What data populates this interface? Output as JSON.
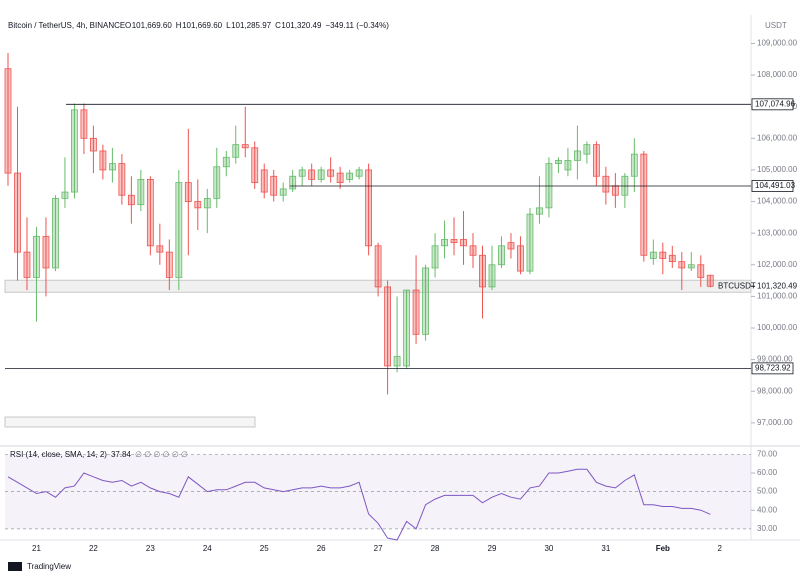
{
  "header": {
    "symbol": "Bitcoin / TetherUS, 4h, BINANCE",
    "ohlc": [
      {
        "key": "O",
        "value": "101,669.60"
      },
      {
        "key": "H",
        "value": "101,669.60"
      },
      {
        "key": "L",
        "value": "101,285.97"
      },
      {
        "key": "C",
        "value": "101,320.49"
      }
    ],
    "change": "−349.11 (−0.34%)",
    "currency": "USDT"
  },
  "time_axis": [
    "21",
    "22",
    "23",
    "24",
    "25",
    "26",
    "27",
    "28",
    "29",
    "30",
    "31",
    "Feb",
    "2"
  ],
  "footer": "TradingView",
  "chart_data": [
    {
      "type": "candlestick",
      "up_color": "#66bb6a",
      "down_color": "#ef5350",
      "open": [
        108.2,
        104.9,
        102.4,
        101.6,
        102.9,
        101.9,
        104.1,
        104.3,
        106.9,
        106.0,
        105.6,
        105.0,
        105.2,
        104.2,
        103.9,
        104.7,
        102.6,
        102.4,
        101.6,
        104.6,
        104.0,
        103.8,
        104.1,
        105.1,
        105.4,
        105.8,
        105.7,
        105.0,
        104.8,
        104.2,
        104.4,
        104.8,
        105.0,
        104.7,
        105.0,
        104.9,
        104.7,
        104.8,
        105.0,
        102.6,
        101.3,
        98.8,
        98.8,
        101.2,
        99.8,
        101.9,
        102.6,
        102.8,
        102.8,
        102.6,
        102.3,
        101.3,
        102.0,
        102.7,
        102.6,
        101.8,
        103.6,
        103.8,
        105.2,
        105.0,
        105.3,
        105.5,
        105.8,
        104.8,
        104.5,
        104.2,
        104.8,
        105.5,
        102.2,
        102.4,
        102.3,
        102.1,
        101.9,
        102.0,
        101.6696
      ],
      "high": [
        108.7,
        107.0,
        103.5,
        103.2,
        103.5,
        104.2,
        105.4,
        107.1,
        107.1,
        106.4,
        105.8,
        105.7,
        105.5,
        104.8,
        105.0,
        104.8,
        103.3,
        102.8,
        105.0,
        106.3,
        104.7,
        104.4,
        105.7,
        105.6,
        106.4,
        107.0,
        105.9,
        105.2,
        105.0,
        104.6,
        105.0,
        105.1,
        105.2,
        105.1,
        105.4,
        105.1,
        105.0,
        105.1,
        105.2,
        102.7,
        101.5,
        101.0,
        101.2,
        102.3,
        102.0,
        103.0,
        103.4,
        103.5,
        103.7,
        103.0,
        102.6,
        102.6,
        102.9,
        103.0,
        102.9,
        103.8,
        104.8,
        105.4,
        105.4,
        105.7,
        106.4,
        105.9,
        105.9,
        105.1,
        104.9,
        104.9,
        106.0,
        105.6,
        102.8,
        102.7,
        102.6,
        102.4,
        102.4,
        102.3,
        101.6696
      ],
      "low": [
        104.5,
        101.5,
        101.2,
        100.2,
        101.0,
        101.8,
        103.8,
        104.1,
        105.5,
        104.9,
        104.7,
        104.6,
        103.9,
        103.3,
        103.7,
        102.3,
        102.0,
        101.2,
        101.2,
        102.3,
        103.1,
        103.0,
        103.8,
        104.8,
        105.2,
        105.4,
        104.4,
        104.1,
        104.0,
        104.0,
        104.3,
        104.5,
        104.5,
        104.6,
        104.6,
        104.4,
        104.6,
        104.7,
        102.3,
        101.0,
        97.9,
        98.6,
        98.7,
        99.5,
        99.6,
        101.6,
        102.2,
        102.3,
        102.0,
        101.9,
        100.3,
        101.2,
        101.9,
        102.2,
        101.7,
        101.7,
        103.3,
        103.5,
        104.9,
        104.8,
        104.7,
        105.2,
        104.5,
        103.9,
        103.8,
        103.8,
        104.3,
        102.1,
        102.0,
        101.7,
        101.9,
        101.2,
        101.8,
        101.3,
        101.28597
      ],
      "close": [
        104.9,
        102.4,
        101.6,
        102.9,
        101.9,
        104.1,
        104.3,
        106.9,
        106.0,
        105.6,
        105.0,
        105.2,
        104.2,
        103.9,
        104.7,
        102.6,
        102.4,
        101.6,
        104.6,
        104.0,
        103.8,
        104.1,
        105.1,
        105.4,
        105.8,
        105.7,
        104.6,
        104.3,
        104.2,
        104.4,
        104.8,
        105.0,
        104.7,
        105.0,
        104.8,
        104.6,
        104.9,
        105.0,
        102.6,
        101.3,
        98.8,
        99.1,
        101.2,
        99.8,
        101.9,
        102.6,
        102.8,
        102.7,
        102.6,
        102.3,
        101.3,
        102.0,
        102.6,
        102.5,
        101.8,
        103.6,
        103.8,
        105.2,
        105.3,
        105.3,
        105.6,
        105.8,
        104.8,
        104.3,
        104.2,
        104.8,
        105.5,
        102.3,
        102.4,
        102.2,
        102.1,
        101.9,
        102.0,
        101.6,
        101.32049
      ],
      "ylim": [
        96.3,
        109.9
      ],
      "yticks": [
        {
          "value": 97,
          "label": "97,000.00"
        },
        {
          "value": 98,
          "label": "98,000.00"
        },
        {
          "value": 99,
          "label": "99,000.00"
        },
        {
          "value": 100,
          "label": "100,000.00"
        },
        {
          "value": 101,
          "label": "101,000.00"
        },
        {
          "value": 102,
          "label": "102,000.00"
        },
        {
          "value": 103,
          "label": "103,000.00"
        },
        {
          "value": 104,
          "label": "104,000.00"
        },
        {
          "value": 105,
          "label": "105,000.00"
        },
        {
          "value": 106,
          "label": "106,000.00"
        },
        {
          "value": 107,
          "label": "107,000.00"
        },
        {
          "value": 108,
          "label": "108,000.00"
        },
        {
          "value": 109,
          "label": "109,000.00"
        }
      ],
      "levels": [
        {
          "value": 107.07496,
          "label": "107,074.96"
        },
        {
          "value": 104.49103,
          "label": "104,491.03"
        },
        {
          "value": 98.72392,
          "label": "98,723.92"
        }
      ],
      "last_price": {
        "value": 101.32049,
        "label": "101,320.49"
      },
      "symbol_tag": "BTCUSDT"
    },
    {
      "type": "line",
      "title": "RSI (14, close, SMA, 14, 2)",
      "value_label": "37.84",
      "extras": "∅ ∅ ∅ ∅ ∅ ∅",
      "color": "#7e57c2",
      "values": [
        58,
        55,
        52,
        49,
        50,
        47,
        52,
        53,
        60,
        58,
        56,
        55,
        56,
        53,
        55,
        52,
        50,
        49,
        47,
        58,
        54,
        50,
        51,
        51,
        53,
        55,
        55,
        52,
        51,
        50,
        51,
        52,
        52,
        53,
        52,
        52,
        53,
        55,
        38,
        33,
        25,
        24,
        34,
        30,
        43,
        46,
        48,
        48,
        48,
        48,
        44,
        47,
        49,
        47,
        46,
        52,
        53,
        60,
        60,
        61,
        62,
        62,
        55,
        53,
        52,
        56,
        59,
        43,
        43,
        42,
        42,
        41,
        41,
        40,
        37.84
      ],
      "ylim": [
        24,
        74
      ],
      "yticks": [
        {
          "value": 30,
          "label": "30.00"
        },
        {
          "value": 40,
          "label": "40.00"
        },
        {
          "value": 50,
          "label": "50.00"
        },
        {
          "value": 60,
          "label": "60.00"
        },
        {
          "value": 70,
          "label": "70.00"
        }
      ],
      "band": [
        30,
        70
      ]
    }
  ]
}
